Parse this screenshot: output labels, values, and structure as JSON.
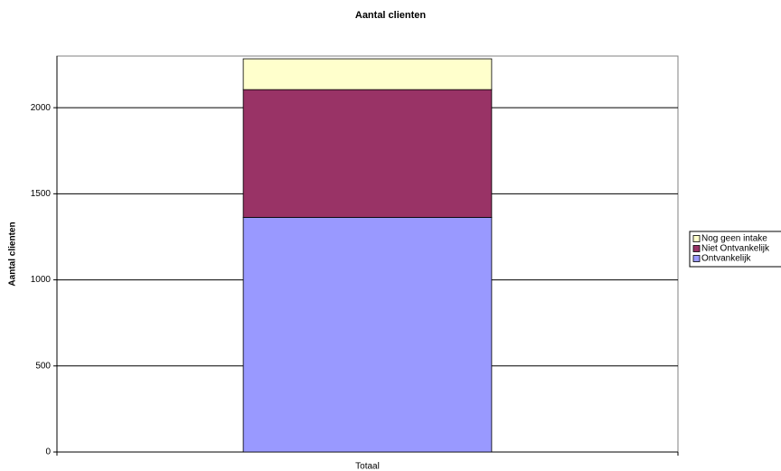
{
  "chart_data": {
    "type": "stacked-bar",
    "title": "Aantal clienten",
    "y_label": "Aantal clienten",
    "categories": [
      "Totaal"
    ],
    "series": [
      {
        "name": "Ontvankelijk",
        "color": "#9999ff",
        "values": [
          1363
        ]
      },
      {
        "name": "Niet Ontvankelijk",
        "color": "#993366",
        "values": [
          742
        ]
      },
      {
        "name": "Nog geen intake",
        "color": "#ffffcc",
        "values": [
          179
        ]
      }
    ],
    "ylim": [
      0,
      2300
    ],
    "yticks": [
      0,
      500,
      1000,
      1500,
      2000
    ],
    "grid": true,
    "legend": "right"
  }
}
